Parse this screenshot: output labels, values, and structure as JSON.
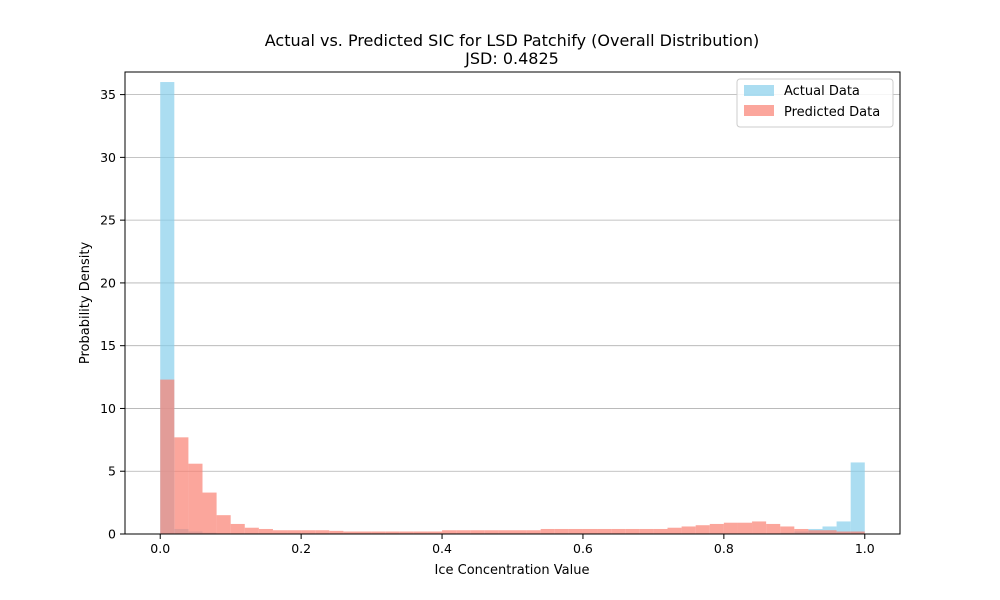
{
  "chart_data": {
    "type": "bar",
    "title": "Actual vs. Predicted SIC for LSD Patchify (Overall Distribution)",
    "subtitle": "JSD: 0.4825",
    "xlabel": "Ice Concentration Value",
    "ylabel": "Probability Density",
    "xlim": [
      -0.05,
      1.05
    ],
    "ylim": [
      0,
      36.8
    ],
    "x_ticks": [
      "0.0",
      "0.2",
      "0.4",
      "0.6",
      "0.8",
      "1.0"
    ],
    "x_tick_values": [
      0,
      0.2,
      0.4,
      0.6,
      0.8,
      1.0
    ],
    "y_ticks": [
      "0",
      "5",
      "10",
      "15",
      "20",
      "25",
      "30",
      "35"
    ],
    "y_tick_values": [
      0,
      5,
      10,
      15,
      20,
      25,
      30,
      35
    ],
    "grid": "y",
    "legend_position": "top-right",
    "bin_start": 0,
    "bin_end": 1,
    "series": [
      {
        "name": "Actual Data",
        "color": "#87ceeb",
        "values": [
          36.0,
          0.4,
          0.2,
          0.1,
          0.05,
          0.05,
          0.05,
          0.05,
          0.05,
          0.05,
          0.05,
          0.05,
          0.05,
          0.05,
          0.05,
          0.05,
          0.05,
          0.05,
          0.05,
          0.05,
          0.05,
          0.05,
          0.05,
          0.05,
          0.05,
          0.05,
          0.05,
          0.05,
          0.05,
          0.05,
          0.05,
          0.05,
          0.05,
          0.05,
          0.05,
          0.05,
          0.05,
          0.05,
          0.05,
          0.05,
          0.05,
          0.05,
          0.05,
          0.05,
          0.1,
          0.2,
          0.4,
          0.6,
          1.0,
          5.7
        ]
      },
      {
        "name": "Predicted Data",
        "color": "#fa8072",
        "values": [
          12.3,
          7.7,
          5.6,
          3.3,
          1.5,
          0.8,
          0.5,
          0.4,
          0.3,
          0.3,
          0.3,
          0.3,
          0.25,
          0.2,
          0.2,
          0.2,
          0.2,
          0.2,
          0.2,
          0.2,
          0.3,
          0.3,
          0.3,
          0.3,
          0.3,
          0.3,
          0.3,
          0.4,
          0.4,
          0.4,
          0.4,
          0.4,
          0.4,
          0.4,
          0.4,
          0.4,
          0.5,
          0.6,
          0.7,
          0.8,
          0.9,
          0.9,
          1.0,
          0.8,
          0.6,
          0.4,
          0.3,
          0.3,
          0.2,
          0.2
        ]
      }
    ]
  }
}
